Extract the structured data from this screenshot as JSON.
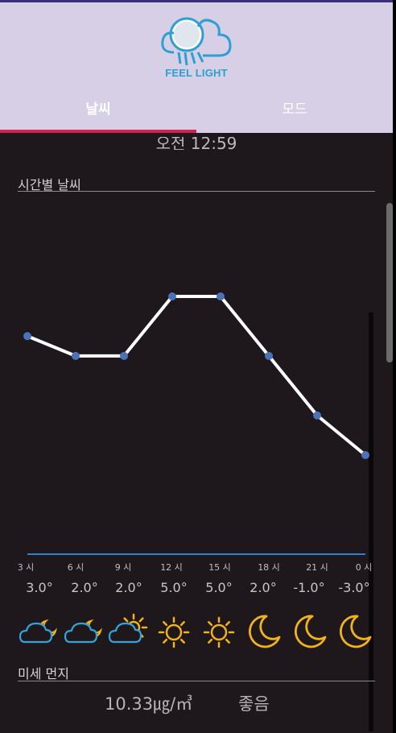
{
  "app": {
    "brand": "FEEL LIGHT"
  },
  "tabs": [
    {
      "label": "날씨",
      "selected": true
    },
    {
      "label": "모드",
      "selected": false
    }
  ],
  "update_time": "오전 12:59",
  "hourly": {
    "title": "시간별 날씨",
    "hours": [
      "3 시",
      "6 시",
      "9 시",
      "12 시",
      "15 시",
      "18 시",
      "21 시",
      "0 시"
    ],
    "temps": [
      "3.0°",
      "2.0°",
      "2.0°",
      "5.0°",
      "5.0°",
      "2.0°",
      "-1.0°",
      "-3.0°"
    ],
    "icons": [
      "cloud-moon-icon",
      "cloud-moon-icon",
      "cloud-sun-icon",
      "sun-icon",
      "sun-icon",
      "moon-icon",
      "moon-icon",
      "moon-icon"
    ]
  },
  "chart_data": {
    "type": "line",
    "x": [
      "3 시",
      "6 시",
      "9 시",
      "12 시",
      "15 시",
      "18 시",
      "21 시",
      "0 시"
    ],
    "series": [
      {
        "values": [
          3.0,
          2.0,
          2.0,
          5.0,
          5.0,
          2.0,
          -1.0,
          -3.0
        ]
      }
    ],
    "ylim": [
      -3,
      5
    ],
    "grid": false
  },
  "dust": {
    "title": "미세 먼지",
    "value": "10.33㎍/㎥",
    "grade": "좋음"
  },
  "colors": {
    "header_bg": "#d6cfe6",
    "tab_indicator": "#d81f54",
    "line": "#ffffff",
    "point": "#4a72b8",
    "baseline": "#2d7fd0",
    "sun": "#f2b21b",
    "cloud": "#35a3d8"
  }
}
